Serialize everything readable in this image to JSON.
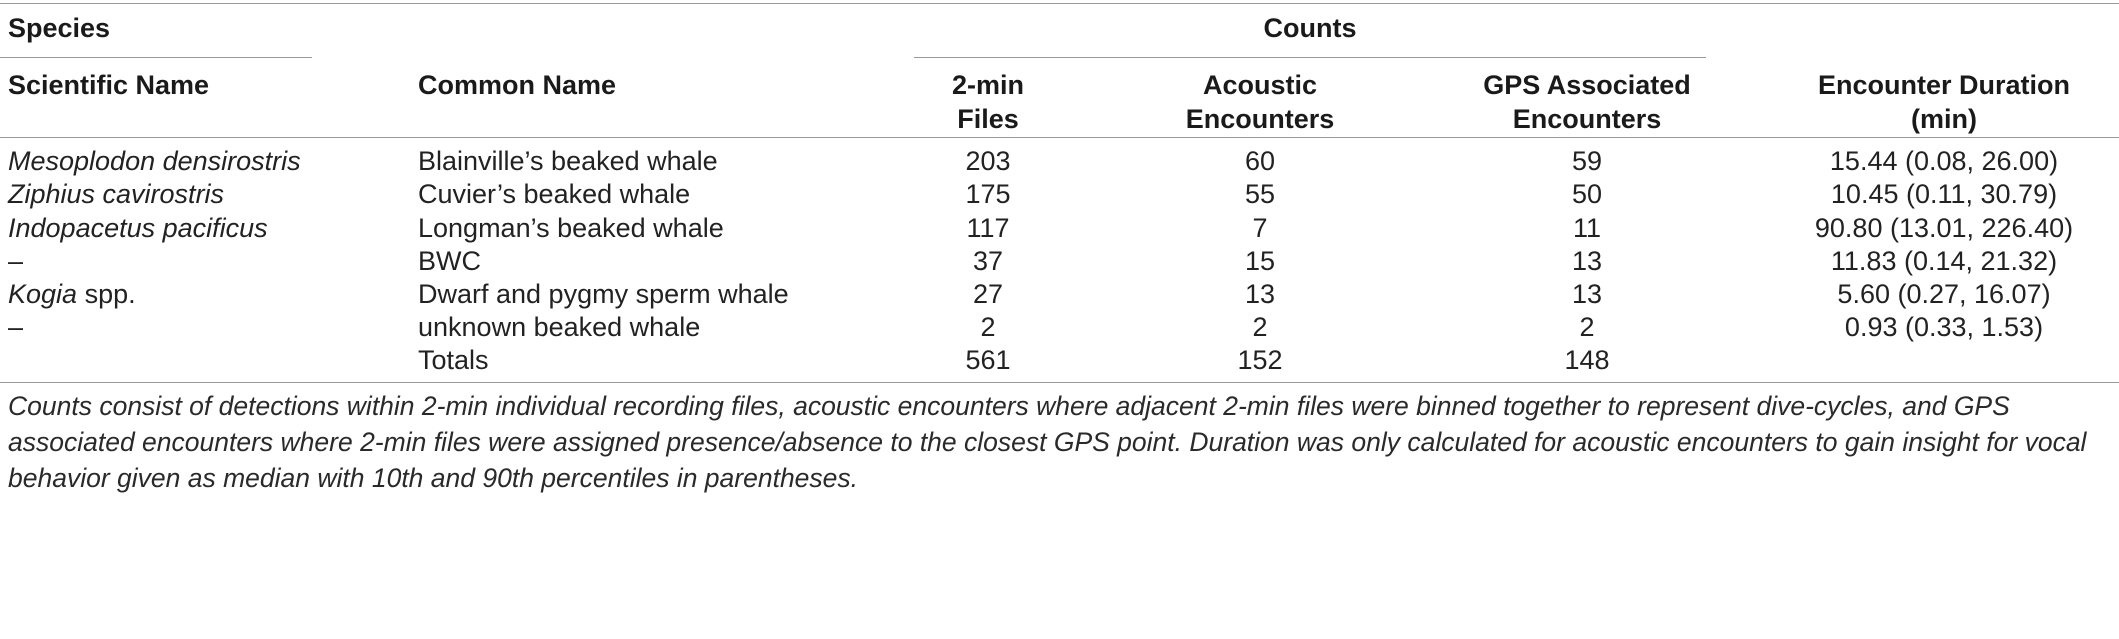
{
  "table": {
    "headers": {
      "species": "Species",
      "counts": "Counts",
      "scientific_name": "Scientific Name",
      "common_name": "Common Name",
      "files_line1": "2-min",
      "files_line2": "Files",
      "acoustic_line1": "Acoustic",
      "acoustic_line2": "Encounters",
      "gps_line1": "GPS Associated",
      "gps_line2": "Encounters",
      "duration_line1": "Encounter Duration",
      "duration_line2": "(min)"
    },
    "rows": [
      {
        "scientific": "Mesoplodon densirostris",
        "common": "Blainville’s beaked whale",
        "files": "203",
        "acoustic": "60",
        "gps": "59",
        "duration": "15.44 (0.08, 26.00)"
      },
      {
        "scientific": "Ziphius cavirostris",
        "common": "Cuvier’s beaked whale",
        "files": "175",
        "acoustic": "55",
        "gps": "50",
        "duration": "10.45 (0.11, 30.79)"
      },
      {
        "scientific": "Indopacetus pacificus",
        "common": "Longman’s beaked whale",
        "files": "117",
        "acoustic": "7",
        "gps": "11",
        "duration": "90.80 (13.01, 226.40)"
      },
      {
        "scientific": "–",
        "common": "BWC",
        "files": "37",
        "acoustic": "15",
        "gps": "13",
        "duration": "11.83 (0.14, 21.32)"
      },
      {
        "scientific_italic": "Kogia",
        "scientific_rest": " spp.",
        "common": "Dwarf and pygmy sperm whale",
        "files": "27",
        "acoustic": "13",
        "gps": "13",
        "duration": "5.60 (0.27, 16.07)"
      },
      {
        "scientific": "–",
        "common": "unknown beaked whale",
        "files": "2",
        "acoustic": "2",
        "gps": "2",
        "duration": "0.93 (0.33, 1.53)"
      }
    ],
    "totals": {
      "label": "Totals",
      "files": "561",
      "acoustic": "152",
      "gps": "148"
    }
  },
  "footnote": "Counts consist of detections within 2-min individual recording files, acoustic encounters where adjacent 2-min files were binned together to represent dive-cycles, and GPS associated encounters where 2-min files were assigned presence/absence to the closest GPS point. Duration was only calculated for acoustic encounters to gain insight for vocal behavior given as median with 10th and 90th percentiles in parentheses."
}
